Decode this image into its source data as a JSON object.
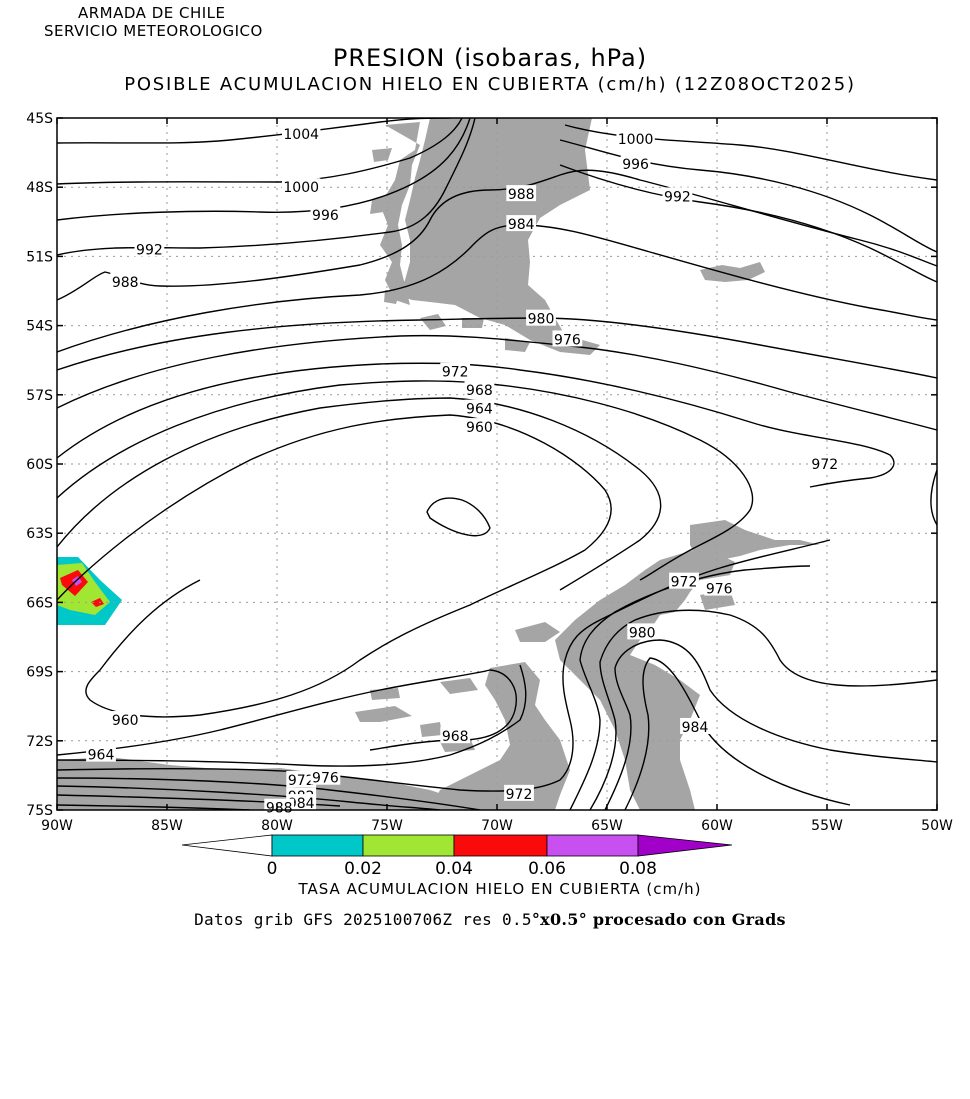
{
  "header": {
    "org_line1": "ARMADA DE CHILE",
    "org_line2": "SERVICIO METEOROLOGICO",
    "title": "PRESION (isobaras, hPa)",
    "subtitle": "POSIBLE ACUMULACION HIELO EN CUBIERTA (cm/h) (12Z08OCT2025)"
  },
  "map": {
    "lat_labels": [
      "45S",
      "48S",
      "51S",
      "54S",
      "57S",
      "60S",
      "63S",
      "66S",
      "69S",
      "72S",
      "75S"
    ],
    "lon_labels": [
      "90W",
      "85W",
      "80W",
      "75W",
      "70W",
      "65W",
      "60W",
      "55W",
      "50W"
    ],
    "isobar_labels": [
      {
        "text": "1004",
        "lon": -78.9,
        "lat": -45.7
      },
      {
        "text": "1000",
        "lon": -78.9,
        "lat": -48.0
      },
      {
        "text": "996",
        "lon": -77.8,
        "lat": -49.2
      },
      {
        "text": "992",
        "lon": -85.8,
        "lat": -50.7
      },
      {
        "text": "988",
        "lon": -86.9,
        "lat": -52.1
      },
      {
        "text": "1000",
        "lon": -63.7,
        "lat": -45.9
      },
      {
        "text": "996",
        "lon": -63.7,
        "lat": -47.0
      },
      {
        "text": "992",
        "lon": -61.8,
        "lat": -48.4
      },
      {
        "text": "988",
        "lon": -68.9,
        "lat": -48.3
      },
      {
        "text": "984",
        "lon": -68.9,
        "lat": -49.6
      },
      {
        "text": "980",
        "lon": -68.0,
        "lat": -53.7
      },
      {
        "text": "976",
        "lon": -66.8,
        "lat": -54.6
      },
      {
        "text": "972",
        "lon": -71.9,
        "lat": -56.0
      },
      {
        "text": "968",
        "lon": -70.8,
        "lat": -56.8
      },
      {
        "text": "964",
        "lon": -70.8,
        "lat": -57.6
      },
      {
        "text": "960",
        "lon": -70.8,
        "lat": -58.4
      },
      {
        "text": "972",
        "lon": -55.1,
        "lat": -60.0
      },
      {
        "text": "972",
        "lon": -61.5,
        "lat": -65.1
      },
      {
        "text": "976",
        "lon": -59.9,
        "lat": -65.4
      },
      {
        "text": "980",
        "lon": -63.4,
        "lat": -67.3
      },
      {
        "text": "984",
        "lon": -61.0,
        "lat": -71.4
      },
      {
        "text": "968",
        "lon": -71.9,
        "lat": -71.8
      },
      {
        "text": "960",
        "lon": -86.9,
        "lat": -71.1
      },
      {
        "text": "964",
        "lon": -88.0,
        "lat": -72.6
      },
      {
        "text": "972",
        "lon": -78.9,
        "lat": -73.7
      },
      {
        "text": "976",
        "lon": -77.8,
        "lat": -73.6
      },
      {
        "text": "972",
        "lon": -69.0,
        "lat": -74.3
      },
      {
        "text": "982",
        "lon": -78.9,
        "lat": -74.4
      },
      {
        "text": "984",
        "lon": -78.9,
        "lat": -74.7
      },
      {
        "text": "988",
        "lon": -79.9,
        "lat": -74.9
      }
    ]
  },
  "legend": {
    "tick_labels": [
      "0",
      "0.02",
      "0.04",
      "0.06",
      "0.08"
    ],
    "title": "TASA ACUMULACION HIELO EN CUBIERTA (cm/h)",
    "colors": [
      "#ffffff",
      "#00c8c8",
      "#a0e632",
      "#fa0a0a",
      "#c850f0",
      "#a000c8"
    ]
  },
  "footer": {
    "source_prefix": "Datos grib GFS 2025100706Z res 0.5",
    "source_bold": "°x0.5° procesado con Grads"
  }
}
